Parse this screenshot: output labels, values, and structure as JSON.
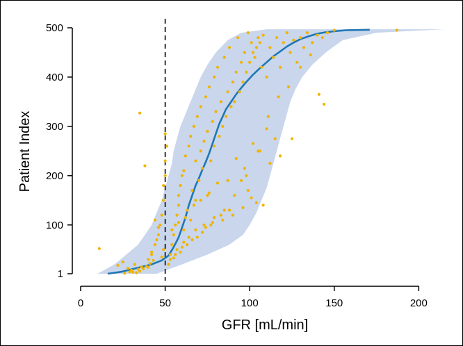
{
  "chart_data": {
    "type": "scatter",
    "xlabel": "GFR [mL/min]",
    "ylabel": "Patient Index",
    "xlim": [
      0,
      220
    ],
    "ylim": [
      1,
      500
    ],
    "xticks": [
      0,
      50,
      100,
      150,
      200
    ],
    "yticks": [
      1,
      100,
      200,
      300,
      400,
      500
    ],
    "xtick_labels": [
      "0",
      "50",
      "100",
      "150",
      "200"
    ],
    "ytick_labels": [
      "1",
      "100",
      "200",
      "300",
      "400",
      "500"
    ],
    "reference_line": {
      "x": 50,
      "style": "dashed"
    },
    "colors": {
      "band": "#c9d6ec",
      "median": "#1f77b4",
      "points": "#f0b400",
      "axis": "#000000"
    },
    "band": {
      "y": [
        1,
        20,
        40,
        60,
        80,
        100,
        125,
        150,
        175,
        200,
        225,
        250,
        275,
        300,
        325,
        350,
        375,
        400,
        425,
        450,
        475,
        490,
        497
      ],
      "lower": [
        10,
        20,
        27,
        34,
        38,
        42,
        45,
        48,
        50,
        52,
        54,
        55,
        57,
        59,
        62,
        65,
        68,
        71,
        75,
        80,
        87,
        95,
        110
      ],
      "upper": [
        45,
        60,
        75,
        88,
        96,
        100,
        104,
        107,
        110,
        112,
        114,
        116,
        118,
        120,
        122,
        124,
        127,
        131,
        137,
        145,
        155,
        175,
        215
      ]
    },
    "series": [
      {
        "type": "line",
        "x": [
          16,
          24,
          30,
          36,
          42,
          48,
          52,
          55,
          58,
          60,
          62,
          64,
          66,
          68,
          70,
          72,
          74,
          76,
          78,
          80,
          82,
          84,
          86,
          88,
          90,
          92,
          95,
          98,
          102,
          106,
          110,
          114,
          118,
          122,
          126,
          130,
          135,
          140,
          145,
          150,
          157,
          171
        ],
        "y": [
          1,
          5,
          10,
          15,
          20,
          28,
          38,
          55,
          75,
          95,
          115,
          140,
          160,
          180,
          195,
          212,
          228,
          245,
          265,
          285,
          305,
          320,
          335,
          345,
          355,
          365,
          378,
          390,
          405,
          418,
          430,
          442,
          452,
          462,
          470,
          477,
          483,
          488,
          491,
          493,
          495,
          496
        ]
      },
      {
        "type": "scatter",
        "x": [
          11,
          35,
          34,
          36,
          29,
          22,
          25,
          28,
          30,
          32,
          38,
          40,
          42,
          44,
          46,
          47,
          48,
          49,
          49,
          50,
          50,
          51,
          50,
          49,
          48,
          45,
          46,
          44,
          42,
          40,
          41,
          43,
          39,
          37,
          35,
          33,
          26,
          31,
          52,
          53,
          54,
          55,
          56,
          57,
          58,
          58,
          59,
          60,
          61,
          61,
          62,
          63,
          64,
          65,
          65,
          66,
          67,
          68,
          68,
          69,
          70,
          71,
          71,
          72,
          73,
          74,
          75,
          75,
          76,
          77,
          78,
          79,
          79,
          80,
          81,
          82,
          83,
          84,
          85,
          86,
          87,
          88,
          89,
          90,
          91,
          92,
          93,
          94,
          95,
          96,
          97,
          98,
          99,
          100,
          101,
          102,
          103,
          104,
          105,
          106,
          107,
          108,
          110,
          112,
          114,
          116,
          118,
          120,
          122,
          124,
          126,
          128,
          130,
          132,
          134,
          137,
          140,
          143,
          146,
          150,
          187,
          125,
          118,
          112,
          108,
          96,
          90,
          84,
          77,
          72,
          66,
          60,
          56,
          53,
          104,
          101,
          99,
          95,
          88,
          83,
          78,
          74,
          69,
          63,
          59,
          55,
          115,
          110,
          106,
          102,
          97,
          92,
          87,
          81,
          76,
          71,
          67,
          62,
          58,
          54,
          57,
          61,
          64,
          68,
          73,
          79,
          85,
          91,
          98,
          105,
          111,
          117,
          123,
          130,
          136,
          141,
          144
        ],
        "y": [
          52,
          327,
          10,
          15,
          5,
          18,
          25,
          12,
          8,
          20,
          220,
          30,
          45,
          60,
          80,
          100,
          120,
          150,
          180,
          200,
          230,
          260,
          285,
          50,
          35,
          70,
          95,
          110,
          40,
          14,
          22,
          28,
          16,
          11,
          6,
          3,
          2,
          4,
          20,
          40,
          60,
          80,
          100,
          120,
          140,
          160,
          180,
          200,
          90,
          210,
          240,
          130,
          260,
          110,
          280,
          170,
          300,
          150,
          230,
          320,
          190,
          250,
          340,
          215,
          270,
          360,
          160,
          290,
          380,
          230,
          310,
          400,
          260,
          330,
          420,
          280,
          350,
          300,
          440,
          320,
          370,
          460,
          340,
          390,
          350,
          410,
          480,
          370,
          430,
          390,
          450,
          410,
          490,
          430,
          470,
          450,
          440,
          460,
          480,
          470,
          420,
          485,
          400,
          460,
          440,
          480,
          420,
          470,
          490,
          450,
          475,
          430,
          480,
          460,
          490,
          470,
          485,
          480,
          490,
          495,
          495,
          275,
          240,
          225,
          140,
          135,
          120,
          110,
          100,
          85,
          70,
          55,
          40,
          30,
          145,
          155,
          170,
          190,
          130,
          120,
          105,
          95,
          75,
          60,
          45,
          33,
          275,
          295,
          250,
          265,
          215,
          235,
          190,
          185,
          165,
          150,
          140,
          115,
          105,
          90,
          50,
          65,
          75,
          90,
          100,
          115,
          130,
          160,
          200,
          250,
          320,
          360,
          380,
          420,
          445,
          365,
          345
        ]
      }
    ]
  }
}
